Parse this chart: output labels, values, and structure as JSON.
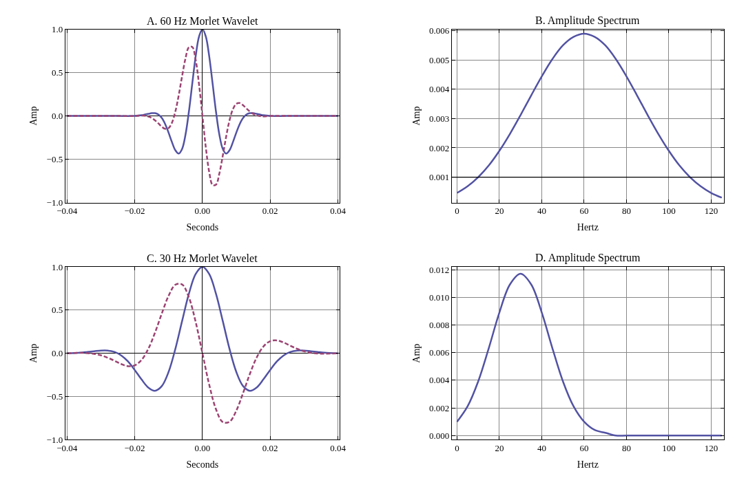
{
  "chart_data": [
    {
      "type": "line",
      "title": "A. 60 Hz Morlet Wavelet",
      "xlabel": "Seconds",
      "ylabel": "Amp",
      "grid": true,
      "x": [
        -0.04,
        -0.035,
        -0.03,
        -0.025,
        -0.02,
        -0.018,
        -0.017,
        -0.016,
        -0.015,
        -0.014,
        -0.013,
        -0.012,
        -0.011,
        -0.01,
        -0.009,
        -0.008,
        -0.007,
        -0.006,
        -0.005,
        -0.004,
        -0.003,
        -0.002,
        -0.001,
        0,
        0.001,
        0.002,
        0.003,
        0.004,
        0.005,
        0.006,
        0.007,
        0.008,
        0.009,
        0.01,
        0.011,
        0.012,
        0.013,
        0.014,
        0.015,
        0.016,
        0.017,
        0.018,
        0.02,
        0.025,
        0.03,
        0.035,
        0.04
      ],
      "series": [
        {
          "color": "#5252a3",
          "line_style": "solid",
          "values": [
            0,
            0,
            0,
            0,
            0,
            0.008,
            0.016,
            0.024,
            0.032,
            0.032,
            0.016,
            -0.024,
            -0.094,
            -0.193,
            -0.302,
            -0.396,
            -0.434,
            -0.38,
            -0.216,
            0.05,
            0.374,
            0.688,
            0.917,
            1,
            0.917,
            0.688,
            0.374,
            0.05,
            -0.216,
            -0.38,
            -0.434,
            -0.396,
            -0.302,
            -0.193,
            -0.094,
            -0.024,
            0.016,
            0.032,
            0.032,
            0.024,
            0.016,
            0.008,
            0,
            0,
            0,
            0,
            0
          ]
        },
        {
          "color": "#9c4372",
          "line_style": "dashed",
          "values": [
            0,
            0,
            0,
            0,
            0,
            0.005,
            0.002,
            -0.006,
            -0.023,
            -0.051,
            -0.086,
            -0.124,
            -0.149,
            -0.14,
            -0.078,
            0.05,
            0.239,
            0.46,
            0.664,
            0.793,
            0.796,
            0.647,
            0.363,
            0,
            -0.363,
            -0.647,
            -0.796,
            -0.793,
            -0.664,
            -0.46,
            -0.239,
            -0.05,
            0.078,
            0.14,
            0.149,
            0.124,
            0.086,
            0.051,
            0.023,
            0.006,
            -0.002,
            -0.005,
            0,
            0,
            0,
            0,
            0
          ]
        }
      ],
      "xlim": [
        -0.0405,
        0.0405
      ],
      "ylim": [
        -1.0,
        1.0
      ],
      "xticks": [
        {
          "value": -0.04,
          "label": "−0.04"
        },
        {
          "value": -0.02,
          "label": "−0.02"
        },
        {
          "value": 0,
          "label": "0.00"
        },
        {
          "value": 0.02,
          "label": "0.02"
        },
        {
          "value": 0.04,
          "label": "0.04"
        }
      ],
      "yticks": [
        {
          "value": -1,
          "label": "−1.0"
        },
        {
          "value": -0.5,
          "label": "−0.5"
        },
        {
          "value": 0,
          "label": "0.0"
        },
        {
          "value": 0.5,
          "label": "0.5"
        },
        {
          "value": 1,
          "label": "1.0"
        }
      ]
    },
    {
      "type": "line",
      "title": "B. Amplitude Spectrum",
      "xlabel": "Hertz",
      "ylabel": "Amp",
      "grid": true,
      "x": [
        0,
        5,
        10,
        15,
        20,
        25,
        30,
        35,
        40,
        45,
        50,
        55,
        60,
        65,
        70,
        75,
        80,
        85,
        90,
        95,
        100,
        105,
        110,
        115,
        120,
        125
      ],
      "series": [
        {
          "color": "#5252a3",
          "line_style": "solid",
          "values": [
            0.00046,
            0.00069,
            0.001,
            0.0014,
            0.0019,
            0.00248,
            0.00312,
            0.00379,
            0.00444,
            0.00503,
            0.0055,
            0.00579,
            0.0059,
            0.00579,
            0.0055,
            0.00503,
            0.00444,
            0.00379,
            0.00312,
            0.00248,
            0.0019,
            0.0014,
            0.001,
            0.00069,
            0.00046,
            0.0003
          ]
        }
      ],
      "xlim": [
        -2.5,
        126
      ],
      "ylim": [
        0.00013,
        0.00605
      ],
      "xticks": [
        0,
        20,
        40,
        60,
        80,
        100,
        120
      ],
      "yticks": [
        0.001,
        0.002,
        0.003,
        0.004,
        0.005,
        0.006
      ],
      "ref_lines": [
        {
          "axis": "y",
          "value": 0.001,
          "color": "#000000"
        }
      ]
    },
    {
      "type": "line",
      "title": "C. 30 Hz Morlet Wavelet",
      "xlabel": "Seconds",
      "ylabel": "Amp",
      "grid": true,
      "x": [
        -0.04,
        -0.036,
        -0.034,
        -0.032,
        -0.03,
        -0.028,
        -0.026,
        -0.024,
        -0.022,
        -0.02,
        -0.018,
        -0.016,
        -0.014,
        -0.012,
        -0.01,
        -0.008,
        -0.006,
        -0.004,
        -0.002,
        0,
        0.002,
        0.004,
        0.006,
        0.008,
        0.01,
        0.012,
        0.014,
        0.016,
        0.018,
        0.02,
        0.022,
        0.024,
        0.026,
        0.028,
        0.03,
        0.032,
        0.034,
        0.036,
        0.04
      ],
      "series": [
        {
          "color": "#5252a3",
          "line_style": "solid",
          "values": [
            0,
            0.008,
            0.016,
            0.024,
            0.032,
            0.032,
            0.016,
            -0.024,
            -0.094,
            -0.193,
            -0.302,
            -0.396,
            -0.434,
            -0.38,
            -0.216,
            0.05,
            0.374,
            0.688,
            0.917,
            1,
            0.917,
            0.688,
            0.374,
            0.05,
            -0.216,
            -0.38,
            -0.434,
            -0.396,
            -0.302,
            -0.193,
            -0.094,
            -0.024,
            0.016,
            0.032,
            0.032,
            0.024,
            0.016,
            0.008,
            0
          ]
        },
        {
          "color": "#9c4372",
          "line_style": "dashed",
          "values": [
            0,
            0.005,
            0.002,
            -0.006,
            -0.023,
            -0.051,
            -0.086,
            -0.124,
            -0.149,
            -0.14,
            -0.078,
            0.05,
            0.239,
            0.46,
            0.664,
            0.793,
            0.796,
            0.647,
            0.363,
            0,
            -0.363,
            -0.647,
            -0.796,
            -0.793,
            -0.664,
            -0.46,
            -0.239,
            -0.05,
            0.078,
            0.14,
            0.149,
            0.124,
            0.086,
            0.051,
            0.023,
            0.006,
            -0.002,
            -0.005,
            0
          ]
        }
      ],
      "xlim": [
        -0.0405,
        0.0405
      ],
      "ylim": [
        -1.0,
        1.0
      ],
      "xticks": [
        {
          "value": -0.04,
          "label": "−0.04"
        },
        {
          "value": -0.02,
          "label": "−0.02"
        },
        {
          "value": 0,
          "label": "0.00"
        },
        {
          "value": 0.02,
          "label": "0.02"
        },
        {
          "value": 0.04,
          "label": "0.04"
        }
      ],
      "yticks": [
        {
          "value": -1,
          "label": "−1.0"
        },
        {
          "value": -0.5,
          "label": "−0.5"
        },
        {
          "value": 0,
          "label": "0.0"
        },
        {
          "value": 0.5,
          "label": "0.5"
        },
        {
          "value": 1,
          "label": "1.0"
        }
      ]
    },
    {
      "type": "line",
      "title": "D. Amplitude Spectrum",
      "xlabel": "Hertz",
      "ylabel": "Amp",
      "grid": true,
      "x": [
        0,
        5,
        10,
        15,
        20,
        25,
        30,
        35,
        40,
        45,
        50,
        55,
        60,
        65,
        70,
        75,
        80,
        90,
        100,
        110,
        125
      ],
      "series": [
        {
          "color": "#5252a3",
          "line_style": "solid",
          "values": [
            0.001,
            0.00212,
            0.00392,
            0.00633,
            0.0089,
            0.01093,
            0.0117,
            0.01093,
            0.0089,
            0.00633,
            0.00392,
            0.00212,
            0.001,
            0.0004,
            0.0002,
            0,
            0,
            0,
            0,
            0,
            0
          ]
        }
      ],
      "xlim": [
        -2.5,
        126
      ],
      "ylim": [
        -0.0003,
        0.0122
      ],
      "xticks": [
        0,
        20,
        40,
        60,
        80,
        100,
        120
      ],
      "yticks": [
        {
          "value": 0,
          "label": "0.000"
        },
        {
          "value": 0.002,
          "label": "0.002"
        },
        {
          "value": 0.004,
          "label": "0.004"
        },
        {
          "value": 0.006,
          "label": "0.006"
        },
        {
          "value": 0.008,
          "label": "0.008"
        },
        {
          "value": 0.01,
          "label": "0.010"
        },
        {
          "value": 0.012,
          "label": "0.012"
        }
      ]
    }
  ]
}
